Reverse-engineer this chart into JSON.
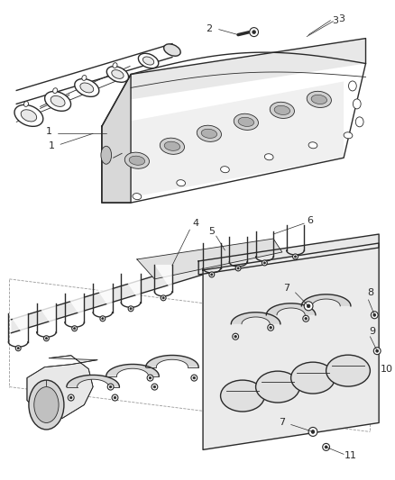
{
  "bg_color": "#ffffff",
  "line_color": "#2a2a2a",
  "label_color": "#2a2a2a",
  "fig_width": 4.38,
  "fig_height": 5.33,
  "dpi": 100,
  "lw_main": 1.0,
  "lw_thin": 0.6,
  "lw_label": 0.5
}
